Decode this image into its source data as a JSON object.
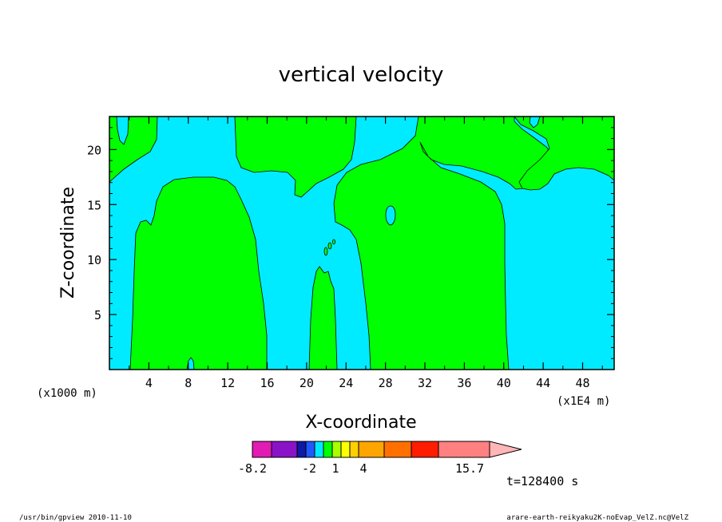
{
  "chart_data": {
    "type": "contour",
    "title": "vertical velocity",
    "xlabel": "X-coordinate",
    "ylabel": "Z-coordinate",
    "x_unit_left": "(x1000 m)",
    "x_unit_right": "(x1E4 m)",
    "xlim": [
      0,
      51.2
    ],
    "ylim": [
      0,
      23
    ],
    "x_ticks": [
      4,
      8,
      12,
      16,
      20,
      24,
      28,
      32,
      36,
      40,
      44,
      48
    ],
    "y_ticks": [
      5,
      10,
      15,
      20
    ],
    "time_label": "t=128400 s",
    "colorbar": {
      "colors": [
        "#e11bb4",
        "#8a13c8",
        "#0c1aa5",
        "#2058ff",
        "#00e8ff",
        "#00ff00",
        "#a8ff00",
        "#ffff00",
        "#ffd000",
        "#ffa500",
        "#ff7000",
        "#ff1d00",
        "#ff8080"
      ],
      "arrow_color": "#ffb6b6",
      "tick_labels": [
        "-8.2",
        "-2",
        "1",
        "4",
        "15.7"
      ]
    },
    "fill_colors": {
      "positive": "#00ff00",
      "negative": "#00ebff"
    }
  },
  "footer": {
    "left": "/usr/bin/gpview  2010-11-10",
    "right": "arare-earth-reikyaku2K-noEvap_VelZ.nc@VelZ"
  }
}
